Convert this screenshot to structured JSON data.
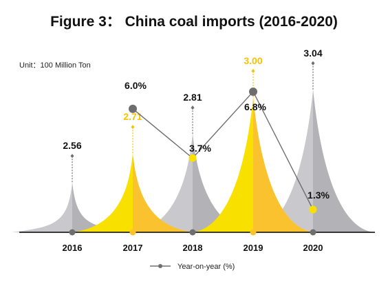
{
  "chart_data": {
    "type": "bar",
    "title": "Figure 3：   China coal imports (2016-2020)",
    "unit_label": "Unit：100 Million Ton",
    "categories": [
      "2016",
      "2017",
      "2018",
      "2019",
      "2020"
    ],
    "values": [
      2.56,
      2.71,
      2.81,
      3.0,
      3.04
    ],
    "value_labels": [
      "2.56",
      "2.71",
      "2.81",
      "3.00",
      "3.04"
    ],
    "yoy": [
      6.0,
      3.7,
      6.8,
      1.3
    ],
    "yoy_labels": [
      "6.0%",
      "3.7%",
      "6.8%",
      "1.3%"
    ],
    "yoy_years": [
      "2017",
      "2018",
      "2019",
      "2020"
    ],
    "legend": "Year-on-year (%)",
    "grid": false,
    "legend_position": "bottom",
    "colors": {
      "gray": "#c9c8cc",
      "gray_dark": "#b3b2b6",
      "yellow": "#f8e000",
      "yellow_dark": "#fac22e",
      "yellow_text": "#f5c400",
      "line": "#6e6e6e",
      "marker": "#6e6e6e",
      "marker_yellow": "#f8e000",
      "axis": "#000000"
    },
    "highlight_categories": [
      "2017",
      "2019"
    ]
  }
}
